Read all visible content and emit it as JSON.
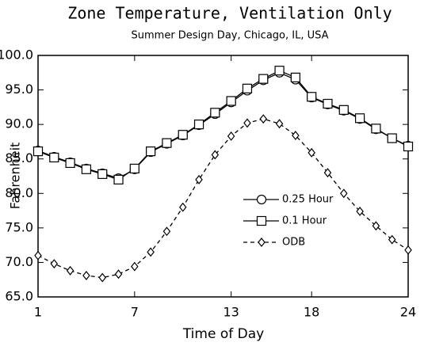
{
  "chart_data": {
    "type": "line",
    "title": "Zone Temperature, Ventilation Only",
    "subtitle": "Summer Design Day, Chicago, IL, USA",
    "x_label": "Time of Day",
    "y_label": "Fahrenheit",
    "x": [
      1,
      2,
      3,
      4,
      5,
      6,
      7,
      8,
      9,
      10,
      11,
      12,
      13,
      14,
      15,
      16,
      17,
      18,
      19,
      20,
      21,
      22,
      23,
      24
    ],
    "series": [
      {
        "name": "0.25 Hour",
        "color": "#000000",
        "marker": "circle",
        "style": "solid",
        "values": [
          86.2,
          85.3,
          84.5,
          83.6,
          82.9,
          82.2,
          83.5,
          86.0,
          87.2,
          88.4,
          89.9,
          91.5,
          93.2,
          94.9,
          96.4,
          97.5,
          96.5,
          93.9,
          92.9,
          92.0,
          90.8,
          89.3,
          88.0,
          86.9
        ]
      },
      {
        "name": "0.1 Hour",
        "color": "#000000",
        "marker": "square",
        "style": "solid",
        "values": [
          86.1,
          85.2,
          84.4,
          83.5,
          82.8,
          82.0,
          83.6,
          86.1,
          87.3,
          88.5,
          90.0,
          91.7,
          93.4,
          95.2,
          96.6,
          97.8,
          96.8,
          94.0,
          93.0,
          92.1,
          90.9,
          89.4,
          88.0,
          86.8
        ]
      },
      {
        "name": "ODB",
        "color": "#000000",
        "marker": "diamond",
        "style": "dashed",
        "values": [
          71.0,
          69.8,
          68.8,
          68.1,
          67.8,
          68.3,
          69.4,
          71.5,
          74.5,
          78.0,
          82.0,
          85.6,
          88.3,
          90.2,
          90.8,
          90.1,
          88.4,
          85.9,
          83.0,
          80.0,
          77.4,
          75.3,
          73.3,
          71.8
        ]
      }
    ],
    "xlim": [
      1,
      24
    ],
    "xticks": [
      1,
      7,
      13,
      18,
      24
    ],
    "ylim": [
      65,
      100
    ],
    "yticks": [
      {
        "value": 65,
        "label": "65.0"
      },
      {
        "value": 70,
        "label": "70.0"
      },
      {
        "value": 75,
        "label": "75.0"
      },
      {
        "value": 80,
        "label": "80.0"
      },
      {
        "value": 85,
        "label": "85.0"
      },
      {
        "value": 90,
        "label": "90.0"
      },
      {
        "value": 95,
        "label": "95.0"
      },
      {
        "value": 100,
        "label": "100.0"
      }
    ],
    "grid": false
  }
}
